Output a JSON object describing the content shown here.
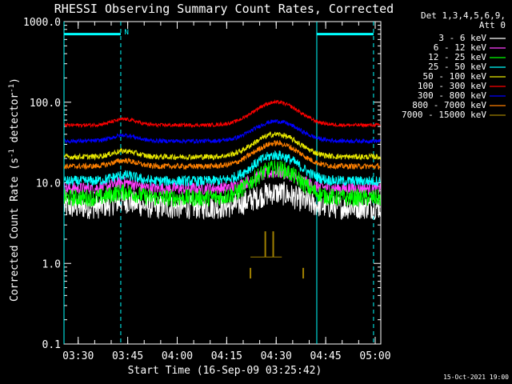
{
  "chart_data": {
    "type": "line",
    "title": "RHESSI Observing Summary Count Rates, Corrected",
    "xlabel": "Start Time (16-Sep-09 03:25:42)",
    "ylabel_main": "Corrected Count Rate (s",
    "ylabel_sup1": "-1",
    "ylabel_mid": " detector",
    "ylabel_sup2": "-1",
    "ylabel_end": ")",
    "timestamp": "15-Oct-2021 19:00",
    "y_scale": "log",
    "ylim": [
      0.1,
      1000.0
    ],
    "xlim_minutes": [
      0,
      96
    ],
    "x_ticks": [
      {
        "label": "03:30",
        "min": 4.3
      },
      {
        "label": "03:45",
        "min": 19.3
      },
      {
        "label": "04:00",
        "min": 34.3
      },
      {
        "label": "04:15",
        "min": 49.3
      },
      {
        "label": "04:30",
        "min": 64.3
      },
      {
        "label": "04:45",
        "min": 79.3
      },
      {
        "label": "05:00",
        "min": 94.3
      }
    ],
    "y_ticks": [
      {
        "label": "1000.0",
        "v": 1000
      },
      {
        "label": "100.0",
        "v": 100
      },
      {
        "label": "10.0",
        "v": 10
      },
      {
        "label": "1.0",
        "v": 1
      },
      {
        "label": "0.1",
        "v": 0.1
      }
    ],
    "legend_header_1": "Det 1,3,4,5,6,9,",
    "legend_header_2": "Att 0",
    "legend_placement": "right",
    "night_markers_minutes": [
      0,
      17.2,
      76.6,
      93.8
    ],
    "night_bars": [
      {
        "from": 0,
        "to": 17.2,
        "v": 700
      },
      {
        "from": 76.6,
        "to": 93.8,
        "v": 700
      }
    ],
    "flag_label": "N",
    "flag_minutes": 18.3,
    "series": [
      {
        "name": "3 - 6 keV",
        "color": "#ffffff",
        "base": 5.0,
        "peak": 7.5,
        "noise": 0.35
      },
      {
        "name": "6 - 12 keV",
        "color": "#ff40ff",
        "base": 8.5,
        "peak": 13.5,
        "noise": 0.18
      },
      {
        "name": "12 - 25 keV",
        "color": "#00ff00",
        "base": 6.5,
        "peak": 15.0,
        "noise": 0.25
      },
      {
        "name": "25 - 50 keV",
        "color": "#00ffff",
        "base": 10.5,
        "peak": 22.0,
        "noise": 0.15
      },
      {
        "name": "50 - 100 keV",
        "color": "#e8e800",
        "base": 21.0,
        "peak": 40.0,
        "noise": 0.08
      },
      {
        "name": "100 - 300 keV",
        "color": "#ff0000",
        "base": 52.0,
        "peak": 100.0,
        "noise": 0.05
      },
      {
        "name": "300 - 800 keV",
        "color": "#0000ff",
        "base": 33.0,
        "peak": 58.0,
        "noise": 0.06
      },
      {
        "name": "800 - 7000 keV",
        "color": "#ff8000",
        "base": 16.0,
        "peak": 31.0,
        "noise": 0.08
      },
      {
        "name": "7000 - 15000 keV",
        "color": "#a08000",
        "base": null,
        "peak": null,
        "noise": 0
      }
    ]
  }
}
